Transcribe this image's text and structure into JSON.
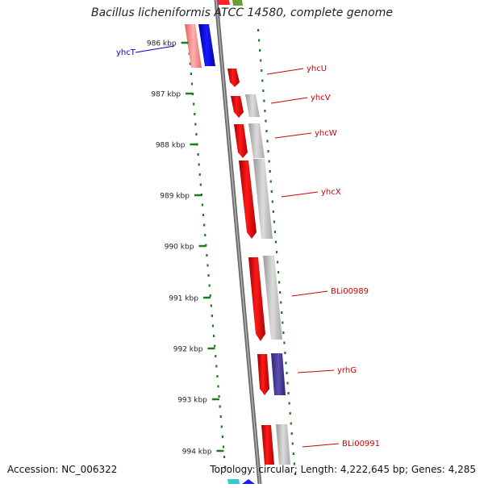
{
  "title": "Bacillus licheniformis ATCC 14580, complete genome",
  "footer": {
    "accession": "Accession: NC_006322",
    "summary": "Topology: circular; Length: 4,222,645 bp; Genes: 4,285"
  },
  "ticks": [
    "986 kbp",
    "987 kbp",
    "988 kbp",
    "989 kbp",
    "990 kbp",
    "991 kbp",
    "992 kbp",
    "993 kbp",
    "994 kbp"
  ],
  "genes": [
    {
      "name": "yhcT",
      "color": "#0000cc",
      "strand": "reverse"
    },
    {
      "name": "yhcU",
      "color": "#cc0000",
      "strand": "forward"
    },
    {
      "name": "yhcV",
      "color": "#cc0000",
      "strand": "forward"
    },
    {
      "name": "yhcW",
      "color": "#cc0000",
      "strand": "forward"
    },
    {
      "name": "yhcX",
      "color": "#cc0000",
      "strand": "forward"
    },
    {
      "name": "BLi00989",
      "color": "#cc0000",
      "strand": "forward"
    },
    {
      "name": "yrhG",
      "color": "#cc0000",
      "strand": "forward"
    },
    {
      "name": "BLi00991",
      "color": "#cc0000",
      "strand": "forward"
    }
  ],
  "colors": {
    "backbone": "#777777",
    "dots": "#1e7a1e",
    "forward_gene": "#ff0000",
    "reverse_gene": "#0000ff",
    "reverse_gene_faded": "#f08080",
    "gray_track": "#b8b8b8",
    "purple_track": "#4a3f96"
  }
}
